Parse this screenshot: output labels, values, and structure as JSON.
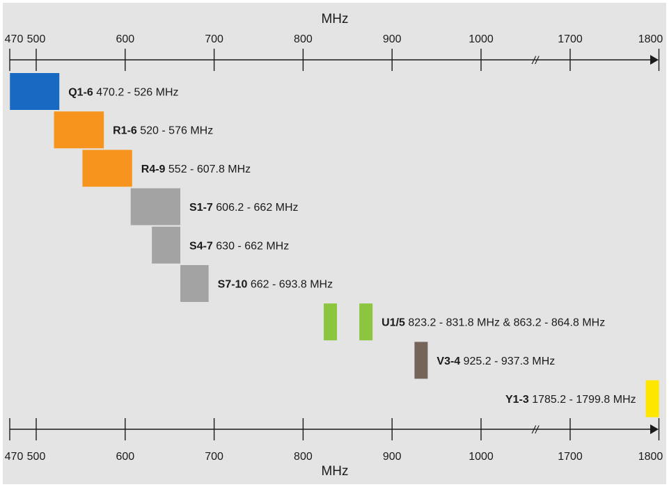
{
  "chart_data": {
    "type": "bar",
    "xlabel": "MHz",
    "x_ticks": [
      "470",
      "500",
      "600",
      "700",
      "800",
      "900",
      "1000",
      "1700",
      "1800"
    ],
    "axis_break": "//",
    "grid": false,
    "bands": [
      {
        "name": "Q1-6",
        "label": "470.2 - 526 MHz",
        "ranges": [
          [
            470.2,
            526
          ]
        ],
        "color": "#1769c1"
      },
      {
        "name": "R1-6",
        "label": "520 - 576 MHz",
        "ranges": [
          [
            520,
            576
          ]
        ],
        "color": "#f7941d"
      },
      {
        "name": "R4-9",
        "label": "552 - 607.8 MHz",
        "ranges": [
          [
            552,
            607.8
          ]
        ],
        "color": "#f7941d"
      },
      {
        "name": "S1-7",
        "label": "606.2 - 662 MHz",
        "ranges": [
          [
            606.2,
            662
          ]
        ],
        "color": "#a3a3a3"
      },
      {
        "name": "S4-7",
        "label": "630 - 662 MHz",
        "ranges": [
          [
            630,
            662
          ]
        ],
        "color": "#a3a3a3"
      },
      {
        "name": "S7-10",
        "label": "662 - 693.8 MHz",
        "ranges": [
          [
            662,
            693.8
          ]
        ],
        "color": "#a3a3a3"
      },
      {
        "name": "U1/5",
        "label": "823.2 - 831.8 MHz & 863.2 - 864.8 MHz",
        "ranges": [
          [
            823.2,
            831.8
          ],
          [
            863.2,
            864.8
          ]
        ],
        "color": "#8cc63f"
      },
      {
        "name": "V3-4",
        "label": "925.2 - 937.3 MHz",
        "ranges": [
          [
            925.2,
            937.3
          ]
        ],
        "color": "#76645a"
      },
      {
        "name": "Y1-3",
        "label": "1785.2 - 1799.8 MHz",
        "ranges": [
          [
            1785.2,
            1799.8
          ]
        ],
        "color": "#ffe600"
      }
    ]
  }
}
